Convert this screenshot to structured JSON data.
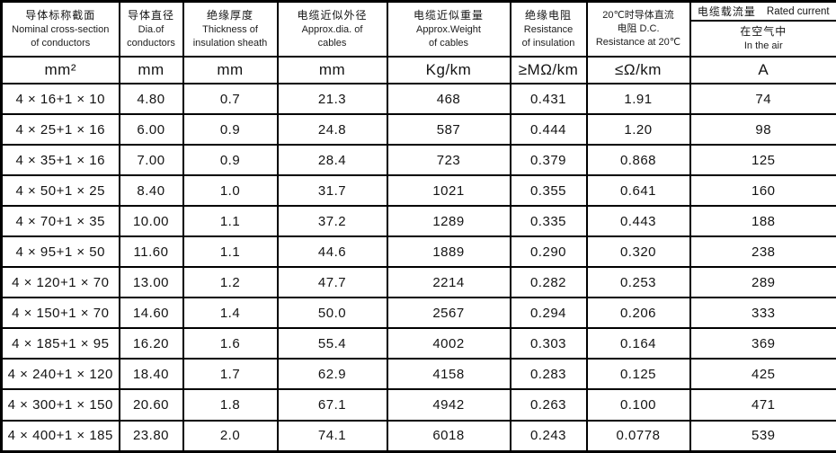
{
  "colors": {
    "border": "#000000",
    "text": "#141414",
    "background": "#ffffff"
  },
  "table": {
    "columns": [
      {
        "id": "cross-section",
        "lines": [
          "导体标称截面",
          "Nominal cross-section",
          "of conductors"
        ],
        "unit": "mm²"
      },
      {
        "id": "conductor-dia",
        "lines": [
          "导体直径",
          "Dia.of",
          "conductors"
        ],
        "unit": "mm"
      },
      {
        "id": "insulation-thickness",
        "lines": [
          "绝缘厚度",
          "Thickness of",
          "insulation sheath"
        ],
        "unit": "mm"
      },
      {
        "id": "cable-dia",
        "lines": [
          "电缆近似外径",
          "Approx.dia. of",
          "cables"
        ],
        "unit": "mm"
      },
      {
        "id": "cable-weight",
        "lines": [
          "电缆近似重量",
          "Approx.Weight",
          "of cables"
        ],
        "unit": "Kg/km"
      },
      {
        "id": "insulation-resistance",
        "lines": [
          "绝缘电阻",
          "Resistance",
          "of insulation"
        ],
        "unit": "≥MΩ/km"
      },
      {
        "id": "dc-resistance",
        "lines": [
          "20℃时导体直流",
          "电阻 D.C.",
          "Resistance at 20℃"
        ],
        "unit": "≤Ω/km"
      },
      {
        "id": "rated-current",
        "title": "电缆载流量",
        "title_en": "Rated current",
        "lines": [
          "在空气中",
          "In the air"
        ],
        "unit": "A"
      }
    ],
    "rows": [
      [
        "4 × 16+1 × 10",
        "4.80",
        "0.7",
        "21.3",
        "468",
        "0.431",
        "1.91",
        "74"
      ],
      [
        "4 × 25+1 × 16",
        "6.00",
        "0.9",
        "24.8",
        "587",
        "0.444",
        "1.20",
        "98"
      ],
      [
        "4 × 35+1 × 16",
        "7.00",
        "0.9",
        "28.4",
        "723",
        "0.379",
        "0.868",
        "125"
      ],
      [
        "4 × 50+1 × 25",
        "8.40",
        "1.0",
        "31.7",
        "1021",
        "0.355",
        "0.641",
        "160"
      ],
      [
        "4 × 70+1 × 35",
        "10.00",
        "1.1",
        "37.2",
        "1289",
        "0.335",
        "0.443",
        "188"
      ],
      [
        "4 × 95+1 × 50",
        "11.60",
        "1.1",
        "44.6",
        "1889",
        "0.290",
        "0.320",
        "238"
      ],
      [
        "4 × 120+1 × 70",
        "13.00",
        "1.2",
        "47.7",
        "2214",
        "0.282",
        "0.253",
        "289"
      ],
      [
        "4 × 150+1 × 70",
        "14.60",
        "1.4",
        "50.0",
        "2567",
        "0.294",
        "0.206",
        "333"
      ],
      [
        "4 × 185+1 × 95",
        "16.20",
        "1.6",
        "55.4",
        "4002",
        "0.303",
        "0.164",
        "369"
      ],
      [
        "4 × 240+1 × 120",
        "18.40",
        "1.7",
        "62.9",
        "4158",
        "0.283",
        "0.125",
        "425"
      ],
      [
        "4 × 300+1 × 150",
        "20.60",
        "1.8",
        "67.1",
        "4942",
        "0.263",
        "0.100",
        "471"
      ],
      [
        "4 × 400+1 × 185",
        "23.80",
        "2.0",
        "74.1",
        "6018",
        "0.243",
        "0.0778",
        "539"
      ]
    ]
  }
}
